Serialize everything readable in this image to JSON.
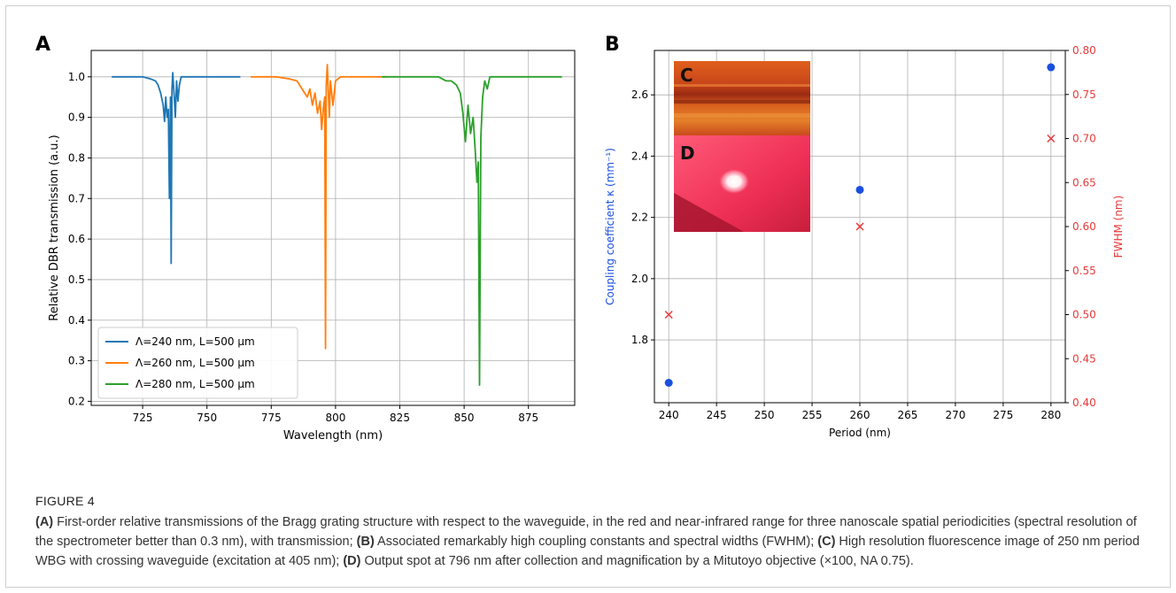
{
  "chart_data": [
    {
      "panel_label": "A",
      "type": "line",
      "xlabel": "Wavelength (nm)",
      "ylabel": "Relative DBR transmission (a.u.)",
      "xlim": [
        705,
        893
      ],
      "ylim": [
        0.19,
        1.065
      ],
      "xticks": [
        725,
        750,
        775,
        800,
        825,
        850,
        875
      ],
      "yticks": [
        0.2,
        0.3,
        0.4,
        0.5,
        0.6,
        0.7,
        0.8,
        0.9,
        1.0
      ],
      "grid": true,
      "legend_position": "lower-left",
      "series": [
        {
          "name": "Λ=240 nm, L=500 μm",
          "color": "#1f77b4",
          "x": [
            713,
            720,
            725,
            728,
            730,
            731,
            732,
            733,
            733.5,
            734,
            734.5,
            735,
            735.4,
            735.8,
            736.1,
            736.4,
            736.7,
            737,
            737.3,
            737.7,
            738.2,
            738.7,
            739.3,
            740,
            742,
            745,
            750,
            755,
            763
          ],
          "y": [
            1.0,
            1.0,
            1.0,
            0.995,
            0.99,
            0.98,
            0.96,
            0.93,
            0.89,
            0.95,
            0.9,
            0.92,
            0.7,
            0.95,
            0.54,
            0.97,
            1.01,
            0.98,
            0.95,
            0.9,
            0.99,
            0.94,
            0.98,
            1.0,
            1.0,
            1.0,
            1.0,
            1.0,
            1.0
          ]
        },
        {
          "name": "Λ=260 nm, L=500 μm",
          "color": "#ff7f0e",
          "x": [
            767,
            772,
            777,
            782,
            785,
            787,
            789,
            790,
            791,
            792,
            793,
            794,
            794.6,
            795.2,
            795.8,
            796.1,
            796.4,
            796.8,
            797.2,
            797.6,
            798,
            799,
            800,
            802,
            805,
            810,
            815,
            820
          ],
          "y": [
            1.0,
            1.0,
            1.0,
            0.995,
            0.99,
            0.97,
            0.95,
            0.97,
            0.93,
            0.96,
            0.91,
            0.94,
            0.87,
            0.92,
            0.95,
            0.33,
            0.98,
            1.03,
            0.96,
            0.9,
            0.99,
            0.93,
            0.99,
            1.0,
            1.0,
            1.0,
            1.0,
            1.0
          ]
        },
        {
          "name": "Λ=280 nm, L=500 μm",
          "color": "#2ca02c",
          "x": [
            818,
            825,
            830,
            835,
            840,
            843,
            845,
            847,
            848.5,
            849.5,
            850.5,
            851.5,
            852.5,
            853.5,
            854.3,
            855,
            855.5,
            856,
            856.5,
            857.2,
            858,
            859,
            860,
            862,
            866,
            870,
            875,
            880,
            888
          ],
          "y": [
            1.0,
            1.0,
            1.0,
            1.0,
            1.0,
            0.99,
            0.99,
            0.98,
            0.96,
            0.91,
            0.84,
            0.93,
            0.86,
            0.9,
            0.82,
            0.74,
            0.79,
            0.24,
            0.85,
            0.95,
            0.99,
            0.97,
            1.0,
            1.0,
            1.0,
            1.0,
            1.0,
            1.0,
            1.0
          ]
        }
      ]
    },
    {
      "panel_label": "B",
      "type": "scatter",
      "xlabel": "Period (nm)",
      "ylabel_left": "Coupling coefficient κ (mm⁻¹)",
      "ylabel_right": "FWHM (nm)",
      "xlim": [
        238.5,
        281.5
      ],
      "ylim_left": [
        1.595,
        2.745
      ],
      "ylim_right": [
        0.4,
        0.8
      ],
      "xticks": [
        240,
        245,
        250,
        255,
        260,
        265,
        270,
        275,
        280
      ],
      "yticks_left": [
        1.8,
        2.0,
        2.2,
        2.4,
        2.6
      ],
      "yticks_right": [
        0.4,
        0.45,
        0.5,
        0.55,
        0.6,
        0.65,
        0.7,
        0.75,
        0.8
      ],
      "grid": true,
      "series": [
        {
          "name": "Coupling coefficient κ",
          "axis": "left",
          "marker": "circle",
          "color": "#1a4fe0",
          "x": [
            240,
            260,
            280
          ],
          "y": [
            1.66,
            2.29,
            2.69
          ]
        },
        {
          "name": "FWHM",
          "axis": "right",
          "marker": "x",
          "color": "#e83a3a",
          "x": [
            240,
            260,
            280
          ],
          "y": [
            0.5,
            0.6,
            0.7
          ]
        }
      ],
      "insets": [
        {
          "label": "C",
          "description": "fluorescence image of waveguide grating"
        },
        {
          "label": "D",
          "description": "output spot image"
        }
      ]
    }
  ],
  "caption": {
    "figure_label": "FIGURE 4",
    "parts": [
      {
        "tag": "(A)",
        "text": " First-order relative transmissions of the Bragg grating structure with respect to the waveguide, in the red and near-infrared range for three nanoscale spatial periodicities (spectral resolution of the spectrometer better than 0.3 nm), with transmission; "
      },
      {
        "tag": "(B)",
        "text": " Associated remarkably high coupling constants and spectral widths (FWHM); "
      },
      {
        "tag": "(C)",
        "text": " High resolution fluorescence image of 250 nm period WBG with crossing waveguide (excitation at 405 nm); "
      },
      {
        "tag": "(D)",
        "text": " Output spot at 796 nm after collection and magnification by a Mitutoyo objective (×100, NA 0.75)."
      }
    ]
  }
}
